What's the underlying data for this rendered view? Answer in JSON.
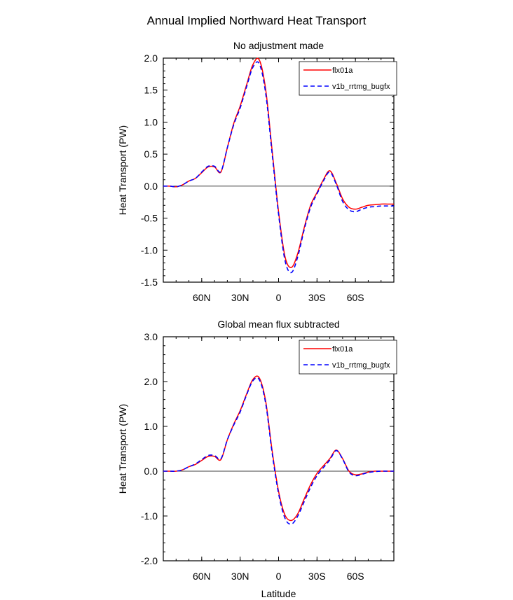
{
  "page": {
    "title": "Annual Implied Northward Heat Transport"
  },
  "chart_data": [
    {
      "type": "line",
      "title": "No adjustment made",
      "xlabel": "",
      "ylabel": "Heat Transport (PW)",
      "xlim": [
        90,
        -90
      ],
      "ylim": [
        -1.5,
        2.0
      ],
      "yticks": [
        -1.5,
        -1.0,
        -0.5,
        0.0,
        0.5,
        1.0,
        1.5,
        2.0
      ],
      "ytick_labels": [
        "-1.5",
        "-1.0",
        "-0.5",
        "0.0",
        "0.5",
        "1.0",
        "1.5",
        "2.0"
      ],
      "xticks": [
        60,
        30,
        0,
        -30,
        -60
      ],
      "xtick_labels": [
        "60N",
        "30N",
        "0",
        "30S",
        "60S"
      ],
      "legend": {
        "position": "top-right",
        "entries": [
          "flx01a",
          "v1b_rrtmg_bugfx"
        ]
      },
      "series": [
        {
          "name": "flx01a",
          "color": "#ff0000",
          "dash": "solid",
          "x": [
            90,
            85,
            80,
            75,
            70,
            65,
            60,
            55,
            50,
            45,
            40,
            35,
            30,
            25,
            20,
            15,
            10,
            5,
            0,
            -5,
            -10,
            -15,
            -20,
            -25,
            -30,
            -35,
            -40,
            -45,
            -50,
            -55,
            -60,
            -65,
            -70,
            -75,
            -80,
            -85,
            -90
          ],
          "y": [
            0.0,
            0.0,
            -0.01,
            0.02,
            0.08,
            0.12,
            0.21,
            0.3,
            0.3,
            0.22,
            0.6,
            0.98,
            1.25,
            1.58,
            1.9,
            1.97,
            1.5,
            0.55,
            -0.4,
            -1.1,
            -1.27,
            -1.05,
            -0.65,
            -0.3,
            -0.1,
            0.1,
            0.24,
            0.05,
            -0.2,
            -0.33,
            -0.36,
            -0.33,
            -0.3,
            -0.29,
            -0.28,
            -0.28,
            -0.28
          ]
        },
        {
          "name": "v1b_rrtmg_bugfx",
          "color": "#0000ff",
          "dash": "dashed",
          "x": [
            90,
            85,
            80,
            75,
            70,
            65,
            60,
            55,
            50,
            45,
            40,
            35,
            30,
            25,
            20,
            15,
            10,
            5,
            0,
            -5,
            -10,
            -15,
            -20,
            -25,
            -30,
            -35,
            -40,
            -45,
            -50,
            -55,
            -60,
            -65,
            -70,
            -75,
            -80,
            -85,
            -90
          ],
          "y": [
            0.0,
            0.0,
            -0.01,
            0.02,
            0.08,
            0.12,
            0.22,
            0.31,
            0.31,
            0.23,
            0.6,
            0.96,
            1.22,
            1.55,
            1.86,
            1.91,
            1.44,
            0.5,
            -0.44,
            -1.16,
            -1.35,
            -1.1,
            -0.68,
            -0.33,
            -0.12,
            0.08,
            0.22,
            0.03,
            -0.24,
            -0.37,
            -0.4,
            -0.36,
            -0.33,
            -0.32,
            -0.31,
            -0.31,
            -0.31
          ]
        }
      ]
    },
    {
      "type": "line",
      "title": "Global mean flux subtracted",
      "xlabel": "Latitude",
      "ylabel": "Heat Transport (PW)",
      "xlim": [
        90,
        -90
      ],
      "ylim": [
        -2.0,
        3.0
      ],
      "yticks": [
        -2.0,
        -1.0,
        0.0,
        1.0,
        2.0,
        3.0
      ],
      "ytick_labels": [
        "-2.0",
        "-1.0",
        "0.0",
        "1.0",
        "2.0",
        "3.0"
      ],
      "xticks": [
        60,
        30,
        0,
        -30,
        -60
      ],
      "xtick_labels": [
        "60N",
        "30N",
        "0",
        "30S",
        "60S"
      ],
      "legend": {
        "position": "top-right",
        "entries": [
          "flx01a",
          "v1b_rrtmg_bugfx"
        ]
      },
      "series": [
        {
          "name": "flx01a",
          "color": "#ff0000",
          "dash": "solid",
          "x": [
            90,
            85,
            80,
            75,
            70,
            65,
            60,
            55,
            50,
            45,
            40,
            35,
            30,
            25,
            20,
            15,
            10,
            5,
            0,
            -5,
            -10,
            -15,
            -20,
            -25,
            -30,
            -35,
            -40,
            -45,
            -50,
            -55,
            -60,
            -65,
            -70,
            -75,
            -80,
            -85,
            -90
          ],
          "y": [
            0.0,
            0.0,
            0.0,
            0.03,
            0.1,
            0.15,
            0.24,
            0.33,
            0.33,
            0.26,
            0.7,
            1.05,
            1.35,
            1.72,
            2.05,
            2.08,
            1.55,
            0.45,
            -0.45,
            -0.98,
            -1.1,
            -0.95,
            -0.62,
            -0.3,
            -0.05,
            0.12,
            0.28,
            0.47,
            0.28,
            0.0,
            -0.08,
            -0.06,
            -0.02,
            0.0,
            0.0,
            0.0,
            0.0
          ]
        },
        {
          "name": "v1b_rrtmg_bugfx",
          "color": "#0000ff",
          "dash": "dashed",
          "x": [
            90,
            85,
            80,
            75,
            70,
            65,
            60,
            55,
            50,
            45,
            40,
            35,
            30,
            25,
            20,
            15,
            10,
            5,
            0,
            -5,
            -10,
            -15,
            -20,
            -25,
            -30,
            -35,
            -40,
            -45,
            -50,
            -55,
            -60,
            -65,
            -70,
            -75,
            -80,
            -85,
            -90
          ],
          "y": [
            0.0,
            0.0,
            0.0,
            0.03,
            0.1,
            0.16,
            0.26,
            0.35,
            0.35,
            0.28,
            0.7,
            1.03,
            1.32,
            1.7,
            2.02,
            2.04,
            1.5,
            0.4,
            -0.5,
            -1.05,
            -1.18,
            -1.0,
            -0.68,
            -0.36,
            -0.1,
            0.08,
            0.25,
            0.46,
            0.27,
            -0.02,
            -0.1,
            -0.07,
            -0.03,
            -0.01,
            0.0,
            0.0,
            0.0
          ]
        }
      ]
    }
  ]
}
